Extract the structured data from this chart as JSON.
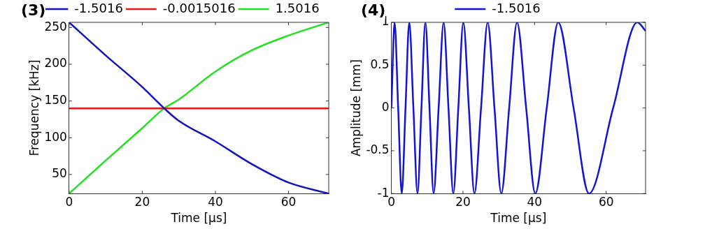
{
  "chart_data": [
    {
      "type": "line",
      "title": "(3)",
      "xlabel": "Time [µs]",
      "ylabel": "Frequency [kHz]",
      "xlim": [
        0,
        71
      ],
      "xticks": [
        0,
        20,
        40,
        60
      ],
      "ylim": [
        24,
        257
      ],
      "yticks": [
        50,
        100,
        150,
        200,
        250
      ],
      "grid": false,
      "legend": "top",
      "marker": "none",
      "line_style": "solid",
      "series": [
        {
          "name": "-1.5016",
          "color": "#1212c0",
          "x": [
            0,
            10,
            20,
            26,
            30,
            40,
            50,
            60,
            71
          ],
          "values": [
            257,
            212,
            169,
            140,
            123,
            95,
            64,
            39,
            24
          ]
        },
        {
          "name": "-0.0015016",
          "color": "#e81818",
          "x": [
            0,
            71
          ],
          "values": [
            140,
            140
          ]
        },
        {
          "name": "1.5016",
          "color": "#22e022",
          "x": [
            0,
            10,
            20,
            26,
            30,
            40,
            50,
            60,
            71
          ],
          "values": [
            24,
            69,
            113,
            140,
            152,
            190,
            219,
            239,
            257
          ]
        }
      ]
    },
    {
      "type": "line",
      "title": "(4)",
      "xlabel": "Time [µs]",
      "ylabel": "Amplitude [mm]",
      "xlim": [
        0,
        71
      ],
      "xticks": [
        0,
        20,
        40,
        60
      ],
      "ylim": [
        -1,
        1
      ],
      "yticks": [
        -1,
        -0.5,
        0,
        0.5,
        1
      ],
      "grid": false,
      "legend": "top",
      "marker": "none",
      "line_style": "solid",
      "series": [
        {
          "name": "-1.5016",
          "color": "#1212d8",
          "x": [
            0,
            0.9,
            1.9,
            2.9,
            3.95,
            5.0,
            6.15,
            7.3,
            8.4,
            9.5,
            10.65,
            11.8,
            13.2,
            14.6,
            15.95,
            17.3,
            18.7,
            20.1,
            21.65,
            23.2,
            25.05,
            26.9,
            28.8,
            30.7,
            32.9,
            35.1,
            37.65,
            40.2,
            43.4,
            46.6,
            50.9,
            55.2,
            61.95,
            68.7,
            71
          ],
          "values": [
            0,
            1,
            0,
            -1,
            0,
            1,
            0,
            -1,
            0,
            1,
            0,
            -1,
            0,
            1,
            0,
            -1,
            0,
            1,
            0,
            -1,
            0,
            1,
            0,
            -1,
            0,
            1,
            0,
            -1,
            0,
            1,
            0,
            -1,
            0,
            1,
            0.9
          ]
        }
      ]
    }
  ]
}
